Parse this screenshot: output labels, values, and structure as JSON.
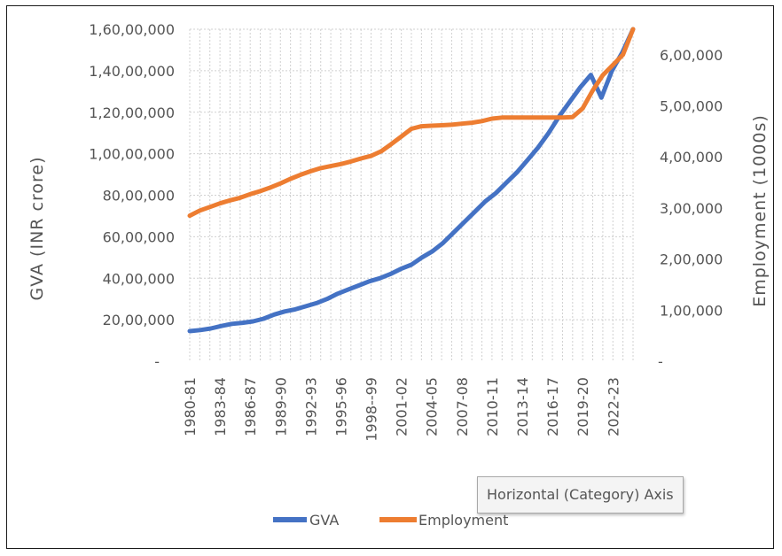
{
  "chart_data": {
    "type": "line",
    "xlabel": "",
    "ylabel": "GVA (INR crore)",
    "y2label": "Employment (1000s)",
    "ylim": [
      0,
      16000000
    ],
    "y2lim": [
      0,
      650000
    ],
    "y_ticks": [
      {
        "value": 0,
        "label": "-"
      },
      {
        "value": 2000000,
        "label": "20,00,000"
      },
      {
        "value": 4000000,
        "label": "40,00,000"
      },
      {
        "value": 6000000,
        "label": "60,00,000"
      },
      {
        "value": 8000000,
        "label": "80,00,000"
      },
      {
        "value": 10000000,
        "label": "1,00,00,000"
      },
      {
        "value": 12000000,
        "label": "1,20,00,000"
      },
      {
        "value": 14000000,
        "label": "1,40,00,000"
      },
      {
        "value": 16000000,
        "label": "1,60,00,000"
      }
    ],
    "y2_ticks": [
      {
        "value": 0,
        "label": "-"
      },
      {
        "value": 100000,
        "label": "1,00,000"
      },
      {
        "value": 200000,
        "label": "2,00,000"
      },
      {
        "value": 300000,
        "label": "3,00,000"
      },
      {
        "value": 400000,
        "label": "4,00,000"
      },
      {
        "value": 500000,
        "label": "5,00,000"
      },
      {
        "value": 600000,
        "label": "6,00,000"
      }
    ],
    "x_tick_labels": [
      "1980-81",
      "1983-84",
      "1986-87",
      "1989-90",
      "1992-93",
      "1995-96",
      "1998--99",
      "2001-02",
      "2004-05",
      "2007-08",
      "2010-11",
      "2013-14",
      "2016-17",
      "2019-20",
      "2022-23"
    ],
    "categories_count": 45,
    "grid": true,
    "legend": "bottom",
    "series": [
      {
        "name": "GVA",
        "axis": "left",
        "color": "#4472C4",
        "values": [
          1450000,
          1500000,
          1580000,
          1700000,
          1800000,
          1850000,
          1920000,
          2050000,
          2250000,
          2400000,
          2500000,
          2650000,
          2800000,
          3000000,
          3250000,
          3450000,
          3650000,
          3850000,
          4000000,
          4200000,
          4450000,
          4650000,
          5000000,
          5300000,
          5700000,
          6200000,
          6700000,
          7200000,
          7700000,
          8100000,
          8600000,
          9100000,
          9700000,
          10300000,
          11000000,
          11800000,
          12500000,
          13200000,
          13800000,
          12700000,
          14000000,
          14900000,
          16000000
        ]
      },
      {
        "name": "Employment",
        "axis": "right",
        "color": "#ED7D31",
        "values": [
          285000,
          295000,
          302000,
          309000,
          315000,
          320000,
          327000,
          333000,
          340000,
          348000,
          357000,
          365000,
          372000,
          378000,
          382000,
          386000,
          391000,
          397000,
          402000,
          411000,
          425000,
          440000,
          455000,
          460000,
          461000,
          462000,
          463000,
          465000,
          467000,
          470000,
          475000,
          477000,
          477000,
          477000,
          477000,
          477000,
          477000,
          477000,
          478000,
          495000,
          530000,
          560000,
          580000,
          600000,
          650000
        ]
      }
    ]
  },
  "tooltip": {
    "text": "Horizontal (Category) Axis"
  }
}
